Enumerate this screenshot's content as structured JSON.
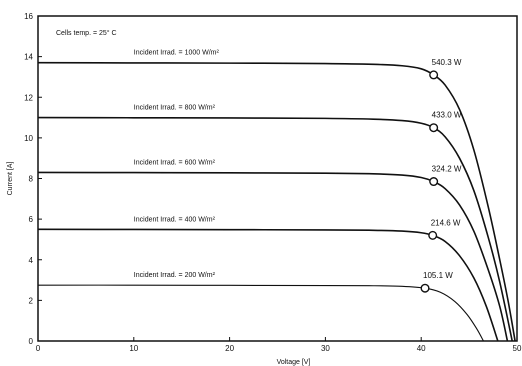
{
  "chart_data": {
    "type": "line",
    "note": "Cells temp. = 25° C",
    "xlabel": "Voltage [V]",
    "ylabel": "Current [A]",
    "xlim": [
      0,
      50
    ],
    "ylim": [
      0,
      16
    ],
    "xticks": [
      0,
      10,
      20,
      30,
      40,
      50
    ],
    "yticks": [
      0,
      2,
      4,
      6,
      8,
      10,
      12,
      14,
      16
    ],
    "grid": false,
    "series": [
      {
        "name": "Incident Irrad. = 1000 W/m²",
        "isc": 13.7,
        "voc": 49.8,
        "mpp": {
          "v": 41.3,
          "i": 13.1,
          "label": "540.3 W"
        },
        "points": [
          [
            0,
            13.7
          ],
          [
            10,
            13.69
          ],
          [
            20,
            13.68
          ],
          [
            30,
            13.66
          ],
          [
            35,
            13.62
          ],
          [
            38,
            13.55
          ],
          [
            40,
            13.4
          ],
          [
            41.3,
            13.1
          ],
          [
            42.5,
            12.6
          ],
          [
            44,
            11.4
          ],
          [
            45.5,
            9.4
          ],
          [
            47,
            6.6
          ],
          [
            48.2,
            4.0
          ],
          [
            49.1,
            1.9
          ],
          [
            49.8,
            0
          ]
        ]
      },
      {
        "name": "Incident Irrad. = 800 W/m²",
        "isc": 11.0,
        "voc": 49.5,
        "mpp": {
          "v": 41.3,
          "i": 10.5,
          "label": "433.0 W"
        },
        "points": [
          [
            0,
            11.0
          ],
          [
            10,
            10.99
          ],
          [
            20,
            10.98
          ],
          [
            30,
            10.96
          ],
          [
            35,
            10.92
          ],
          [
            38,
            10.85
          ],
          [
            40,
            10.72
          ],
          [
            41.3,
            10.5
          ],
          [
            42.5,
            10.05
          ],
          [
            44,
            9.0
          ],
          [
            45.5,
            7.4
          ],
          [
            47,
            5.1
          ],
          [
            48.2,
            2.9
          ],
          [
            49.5,
            0
          ]
        ]
      },
      {
        "name": "Incident Irrad. = 600 W/m²",
        "isc": 8.3,
        "voc": 49.0,
        "mpp": {
          "v": 41.3,
          "i": 7.85,
          "label": "324.2 W"
        },
        "points": [
          [
            0,
            8.3
          ],
          [
            10,
            8.29
          ],
          [
            20,
            8.28
          ],
          [
            30,
            8.26
          ],
          [
            35,
            8.23
          ],
          [
            38,
            8.17
          ],
          [
            40,
            8.05
          ],
          [
            41.3,
            7.85
          ],
          [
            42.5,
            7.5
          ],
          [
            44,
            6.7
          ],
          [
            45.5,
            5.4
          ],
          [
            47,
            3.5
          ],
          [
            48.2,
            1.7
          ],
          [
            49.0,
            0
          ]
        ]
      },
      {
        "name": "Incident Irrad. = 400 W/m²",
        "isc": 5.5,
        "voc": 48.0,
        "mpp": {
          "v": 41.2,
          "i": 5.2,
          "label": "214.6 W"
        },
        "points": [
          [
            0,
            5.5
          ],
          [
            10,
            5.49
          ],
          [
            20,
            5.48
          ],
          [
            30,
            5.47
          ],
          [
            35,
            5.45
          ],
          [
            38,
            5.41
          ],
          [
            40,
            5.33
          ],
          [
            41.2,
            5.2
          ],
          [
            42.5,
            4.9
          ],
          [
            44,
            4.2
          ],
          [
            45.5,
            3.1
          ],
          [
            46.8,
            1.7
          ],
          [
            48.0,
            0
          ]
        ]
      },
      {
        "name": "Incident Irrad. = 200 W/m²",
        "isc": 2.75,
        "voc": 46.5,
        "mpp": {
          "v": 40.4,
          "i": 2.6,
          "label": "105.1 W"
        },
        "points": [
          [
            0,
            2.75
          ],
          [
            10,
            2.75
          ],
          [
            20,
            2.74
          ],
          [
            30,
            2.73
          ],
          [
            35,
            2.72
          ],
          [
            38,
            2.69
          ],
          [
            40.4,
            2.6
          ],
          [
            42,
            2.4
          ],
          [
            43.5,
            1.95
          ],
          [
            44.8,
            1.3
          ],
          [
            45.8,
            0.6
          ],
          [
            46.5,
            0
          ]
        ]
      }
    ]
  }
}
